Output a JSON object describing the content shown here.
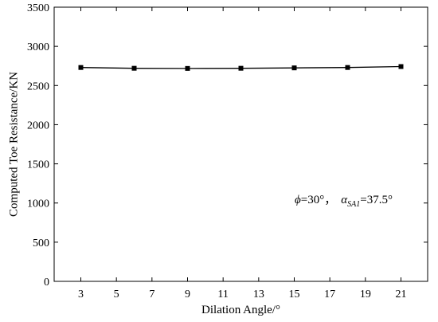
{
  "chart_data": {
    "type": "line",
    "title": "",
    "xlabel": "Dilation Angle/°",
    "ylabel": "Computed Toe Resistance/KN",
    "xlim": [
      1.5,
      22.5
    ],
    "ylim": [
      0,
      3500
    ],
    "xticks": [
      3,
      5,
      7,
      9,
      11,
      13,
      15,
      17,
      19,
      21
    ],
    "yticks": [
      0,
      500,
      1000,
      1500,
      2000,
      2500,
      3000,
      3500
    ],
    "grid": false,
    "legend": "none",
    "series": [
      {
        "x": [
          3,
          6,
          9,
          12,
          15,
          18,
          21
        ],
        "y": [
          2730,
          2720,
          2718,
          2720,
          2725,
          2730,
          2742
        ],
        "marker": "square",
        "color": "#000000"
      }
    ],
    "annotation": {
      "phi_symbol": "ϕ",
      "phi_value": "=30°",
      "separator": "，",
      "alpha_symbol": "α",
      "alpha_subscript": "SA1",
      "alpha_value": "=37.5°"
    }
  }
}
